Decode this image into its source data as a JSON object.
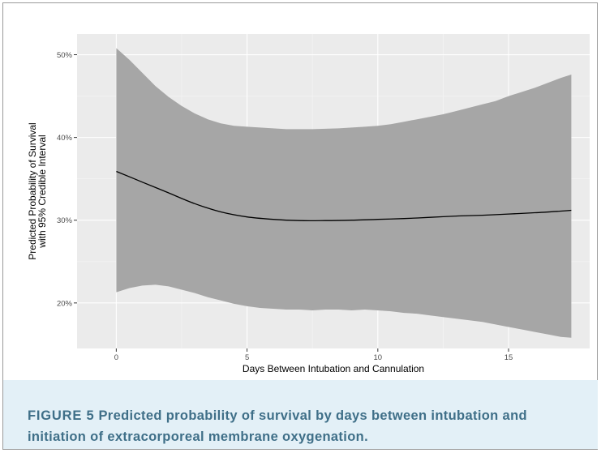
{
  "chart_data": {
    "type": "line",
    "xlabel": "Days Between Intubation and Cannulation",
    "ylabel_line1": "Predicted Probability of Survival",
    "ylabel_line2": "with 95% Credible Interval",
    "xlim": [
      -1.5,
      18.1
    ],
    "ylim": [
      14.5,
      52.5
    ],
    "x_ticks": [
      0,
      5,
      10,
      15
    ],
    "x_tick_labels": [
      "0",
      "5",
      "10",
      "15"
    ],
    "y_ticks": [
      20,
      30,
      40,
      50
    ],
    "y_tick_labels": [
      "20%",
      "30%",
      "40%",
      "50%"
    ],
    "grid": true,
    "legend": "none",
    "series": [
      {
        "x": [
          0,
          1,
          2,
          3,
          4,
          5,
          6,
          7,
          8,
          9,
          10,
          11,
          12,
          13,
          14,
          15,
          16,
          17,
          17.4
        ],
        "values": [
          35.9,
          34.6,
          33.3,
          32.0,
          31.0,
          30.4,
          30.1,
          29.95,
          29.95,
          30.0,
          30.1,
          30.2,
          30.35,
          30.5,
          30.6,
          30.75,
          30.9,
          31.1,
          31.2
        ]
      }
    ],
    "band": {
      "x": [
        0,
        0.5,
        1,
        1.5,
        2,
        2.5,
        3,
        3.5,
        4,
        4.5,
        5,
        5.5,
        6,
        6.5,
        7,
        7.5,
        8,
        8.5,
        9,
        9.5,
        10,
        10.5,
        11,
        11.5,
        12,
        12.5,
        13,
        13.5,
        14,
        14.5,
        15,
        15.5,
        16,
        16.5,
        17,
        17.4
      ],
      "upper": [
        50.8,
        49.4,
        47.8,
        46.2,
        44.9,
        43.8,
        42.9,
        42.2,
        41.7,
        41.4,
        41.3,
        41.2,
        41.1,
        41.0,
        41.0,
        41.0,
        41.05,
        41.1,
        41.2,
        41.3,
        41.4,
        41.6,
        41.9,
        42.2,
        42.5,
        42.8,
        43.2,
        43.6,
        44.0,
        44.4,
        45.0,
        45.5,
        46.0,
        46.6,
        47.2,
        47.6
      ],
      "lower": [
        21.3,
        21.8,
        22.1,
        22.2,
        22.0,
        21.6,
        21.2,
        20.7,
        20.3,
        19.9,
        19.6,
        19.4,
        19.3,
        19.2,
        19.2,
        19.1,
        19.2,
        19.2,
        19.1,
        19.2,
        19.1,
        19.0,
        18.8,
        18.7,
        18.5,
        18.3,
        18.1,
        17.9,
        17.7,
        17.4,
        17.1,
        16.8,
        16.5,
        16.2,
        15.9,
        15.8
      ]
    },
    "colors": {
      "panel": "#ebebeb",
      "grid": "#ffffff",
      "band": "#a6a6a6",
      "line": "#000000"
    }
  },
  "caption": {
    "label": "FIGURE 5",
    "text": "Predicted probability of survival by days between intubation and initiation of extracorporeal membrane oxygenation."
  }
}
